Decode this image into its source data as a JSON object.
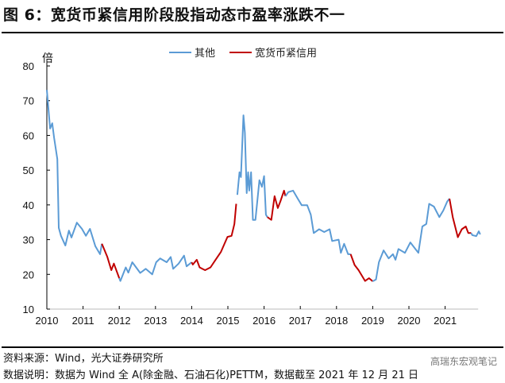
{
  "title": "图 6：宽货币紧信用阶段股指动态市盈率涨跌不一",
  "footer": {
    "source": "资料来源：Wind，光大证券研究所",
    "note": "数据说明：数据为 Wind 全 A(除金融、石油石化)PETTM，数据截至 2021 年 12 月 21 日",
    "watermark": "高瑞东宏观笔记"
  },
  "chart_data": {
    "type": "line",
    "title": "宽货币紧信用阶段股指动态市盈率涨跌不一",
    "ylabel": "倍",
    "xlabel": "",
    "ylim": [
      10,
      80
    ],
    "xlim": [
      2010,
      2022
    ],
    "yticks": [
      10,
      20,
      30,
      40,
      50,
      60,
      70,
      80
    ],
    "xticks": [
      2010,
      2011,
      2012,
      2013,
      2014,
      2015,
      2016,
      2017,
      2018,
      2019,
      2020,
      2021
    ],
    "legend": "top-center",
    "grid": false,
    "series": [
      {
        "name": "其他",
        "color": "#5B9BD5"
      },
      {
        "name": "宽货币紧信用",
        "color": "#C00000"
      }
    ],
    "segments": [
      {
        "series": 0,
        "points": [
          [
            2010.0,
            73.1
          ],
          [
            2010.09,
            62
          ],
          [
            2010.15,
            63.5
          ],
          [
            2010.2,
            59.4
          ],
          [
            2010.29,
            53.2
          ],
          [
            2010.33,
            33.4
          ],
          [
            2010.39,
            31.1
          ],
          [
            2010.51,
            28.3
          ],
          [
            2010.61,
            32.6
          ],
          [
            2010.68,
            30.6
          ],
          [
            2010.83,
            34.9
          ],
          [
            2010.97,
            33.1
          ],
          [
            2011.08,
            31.1
          ],
          [
            2011.19,
            33.1
          ],
          [
            2011.34,
            28.1
          ],
          [
            2011.47,
            25.8
          ],
          [
            2011.52,
            28.8
          ]
        ]
      },
      {
        "series": 1,
        "points": [
          [
            2011.52,
            28.8
          ],
          [
            2011.67,
            25
          ],
          [
            2011.78,
            21.2
          ],
          [
            2011.85,
            23.1
          ],
          [
            2012.0,
            18.9
          ]
        ]
      },
      {
        "series": 0,
        "points": [
          [
            2012.0,
            18.9
          ],
          [
            2012.03,
            18.1
          ],
          [
            2012.18,
            22
          ],
          [
            2012.25,
            20.5
          ],
          [
            2012.36,
            23.5
          ],
          [
            2012.58,
            20.4
          ],
          [
            2012.73,
            21.6
          ],
          [
            2012.91,
            20
          ],
          [
            2013.02,
            23.5
          ],
          [
            2013.13,
            24.6
          ],
          [
            2013.31,
            23.5
          ],
          [
            2013.42,
            25
          ],
          [
            2013.49,
            21.6
          ],
          [
            2013.64,
            23.1
          ],
          [
            2013.79,
            25.4
          ],
          [
            2013.86,
            22.3
          ],
          [
            2014.0,
            23.5
          ]
        ]
      },
      {
        "series": 1,
        "points": [
          [
            2014.0,
            23.5
          ],
          [
            2014.03,
            22.8
          ],
          [
            2014.14,
            24.2
          ],
          [
            2014.22,
            22
          ],
          [
            2014.37,
            21.2
          ],
          [
            2014.52,
            22
          ],
          [
            2014.66,
            24.2
          ],
          [
            2014.81,
            26.5
          ],
          [
            2014.99,
            30.8
          ],
          [
            2015.1,
            31.1
          ],
          [
            2015.18,
            34.5
          ],
          [
            2015.23,
            40.3
          ]
        ]
      },
      {
        "series": 0,
        "points": [
          [
            2015.26,
            42.9
          ],
          [
            2015.32,
            49.4
          ],
          [
            2015.36,
            48
          ],
          [
            2015.43,
            65.8
          ],
          [
            2015.47,
            60.8
          ],
          [
            2015.52,
            43.4
          ],
          [
            2015.56,
            49.4
          ],
          [
            2015.59,
            44.1
          ],
          [
            2015.64,
            49.4
          ],
          [
            2015.69,
            35.7
          ],
          [
            2015.76,
            35.7
          ],
          [
            2015.87,
            47.1
          ],
          [
            2015.94,
            45.2
          ],
          [
            2016.0,
            48.3
          ],
          [
            2016.05,
            37.2
          ],
          [
            2016.09,
            36.5
          ]
        ]
      },
      {
        "series": 1,
        "points": [
          [
            2016.09,
            36.5
          ],
          [
            2016.2,
            35.7
          ],
          [
            2016.29,
            42.5
          ],
          [
            2016.38,
            39.1
          ],
          [
            2016.45,
            41
          ],
          [
            2016.55,
            44.1
          ],
          [
            2016.59,
            42.5
          ]
        ]
      },
      {
        "series": 0,
        "points": [
          [
            2016.59,
            42.5
          ],
          [
            2016.67,
            43.7
          ],
          [
            2016.8,
            44.1
          ],
          [
            2016.93,
            41.8
          ],
          [
            2017.04,
            39.9
          ],
          [
            2017.19,
            39.9
          ],
          [
            2017.29,
            37.2
          ],
          [
            2017.37,
            31.9
          ],
          [
            2017.52,
            33
          ],
          [
            2017.66,
            32.2
          ],
          [
            2017.81,
            33
          ],
          [
            2017.88,
            29.6
          ],
          [
            2018.06,
            30
          ],
          [
            2018.12,
            26.2
          ],
          [
            2018.21,
            28.8
          ],
          [
            2018.32,
            25.8
          ],
          [
            2018.39,
            25.8
          ]
        ]
      },
      {
        "series": 1,
        "points": [
          [
            2018.39,
            25.8
          ],
          [
            2018.5,
            22.7
          ],
          [
            2018.61,
            21.2
          ],
          [
            2018.79,
            18.1
          ],
          [
            2018.9,
            18.9
          ],
          [
            2019.0,
            18
          ]
        ]
      },
      {
        "series": 0,
        "points": [
          [
            2019.0,
            18
          ],
          [
            2019.09,
            18.5
          ],
          [
            2019.17,
            23.5
          ],
          [
            2019.3,
            26.9
          ],
          [
            2019.44,
            24.6
          ],
          [
            2019.56,
            25.8
          ],
          [
            2019.63,
            24.2
          ],
          [
            2019.71,
            27.3
          ],
          [
            2019.89,
            26.2
          ],
          [
            2020.04,
            29.2
          ],
          [
            2020.15,
            27.7
          ],
          [
            2020.26,
            26.2
          ],
          [
            2020.37,
            33.8
          ],
          [
            2020.48,
            34.5
          ],
          [
            2020.56,
            40.3
          ],
          [
            2020.69,
            39.5
          ],
          [
            2020.84,
            36.5
          ],
          [
            2020.95,
            38.4
          ],
          [
            2021.06,
            41
          ],
          [
            2021.12,
            41.8
          ]
        ]
      },
      {
        "series": 1,
        "points": [
          [
            2021.12,
            41.8
          ],
          [
            2021.21,
            36.5
          ],
          [
            2021.35,
            30.7
          ],
          [
            2021.46,
            33
          ],
          [
            2021.57,
            33.8
          ],
          [
            2021.64,
            31.9
          ],
          [
            2021.72,
            31.9
          ]
        ]
      },
      {
        "series": 0,
        "points": [
          [
            2021.72,
            31.9
          ],
          [
            2021.75,
            31.3
          ],
          [
            2021.86,
            31
          ],
          [
            2021.93,
            32.4
          ],
          [
            2021.97,
            31.5
          ]
        ]
      }
    ]
  }
}
